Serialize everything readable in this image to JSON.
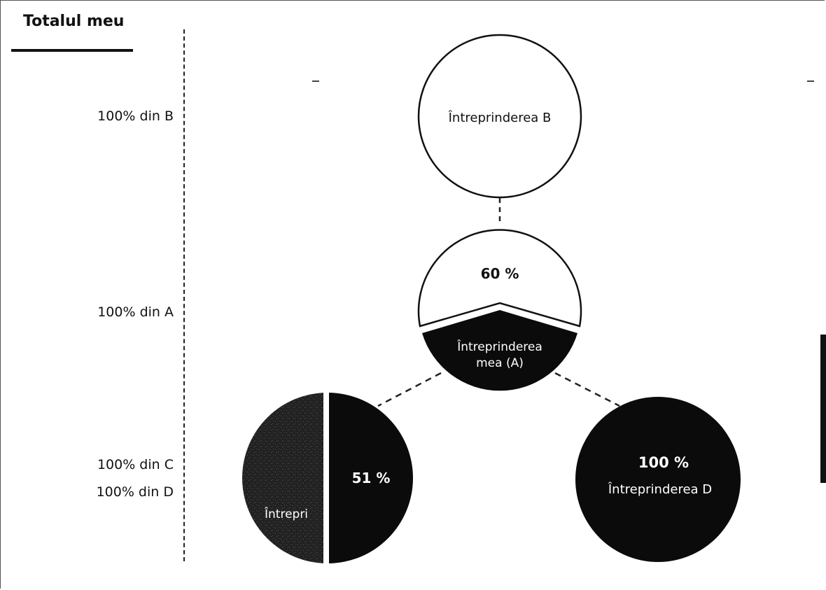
{
  "header": {
    "title": "Totalul meu"
  },
  "levels": [
    {
      "label": "100% din B"
    },
    {
      "label": "100% din A"
    },
    {
      "label": "100% din C"
    },
    {
      "label": "100% din D"
    }
  ],
  "nodes": {
    "b": {
      "label": "Întreprinderea B"
    },
    "a": {
      "percent": "60 %",
      "label_line1": "Întreprinderea",
      "label_line2": "mea (A)"
    },
    "c": {
      "percent": "51 %",
      "label": "Întrepri"
    },
    "d": {
      "percent": "100 %",
      "label": "Întreprinderea D"
    }
  },
  "colors": {
    "dark": "#0b0b0b",
    "textured": "#262626",
    "light": "#ffffff"
  }
}
